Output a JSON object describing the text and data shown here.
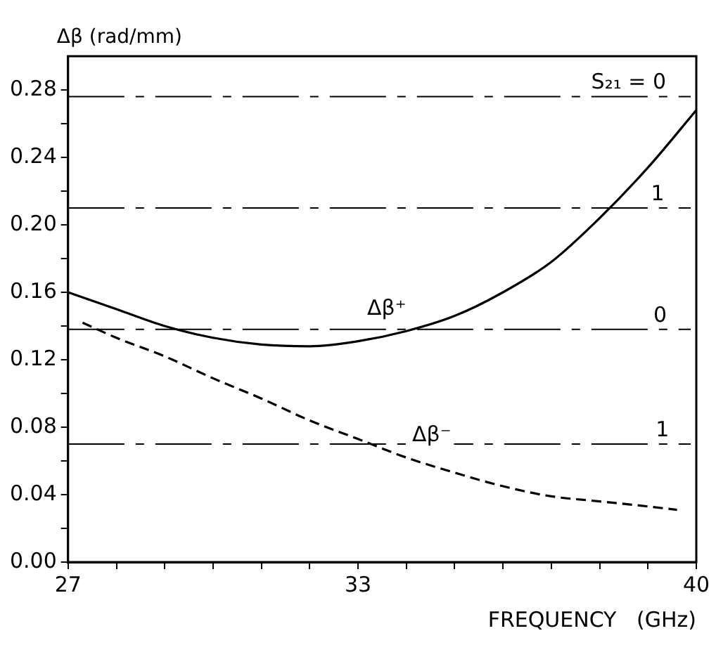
{
  "chart_data": {
    "type": "line",
    "ylabel": "Δβ (rad/mm)",
    "xlabel": "FREQUENCY   (GHz)",
    "xlim": [
      27,
      40
    ],
    "xticks": [
      27,
      {
        "value": 28,
        "label": null
      },
      {
        "value": 29,
        "label": null
      },
      {
        "value": 30,
        "label": null
      },
      {
        "value": 31,
        "label": null
      },
      {
        "value": 32,
        "label": null
      },
      33,
      {
        "value": 34,
        "label": null
      },
      {
        "value": 35,
        "label": null
      },
      {
        "value": 36,
        "label": null
      },
      {
        "value": 37,
        "label": null
      },
      {
        "value": 38,
        "label": null
      },
      {
        "value": 39,
        "label": null
      },
      40
    ],
    "ylim": [
      0,
      0.3
    ],
    "yticks": [
      {
        "value": 0,
        "label": "0.00"
      },
      {
        "value": 0.02,
        "label": null
      },
      {
        "value": 0.04,
        "label": "0.04"
      },
      {
        "value": 0.06,
        "label": null
      },
      {
        "value": 0.08,
        "label": "0.08"
      },
      {
        "value": 0.1,
        "label": null
      },
      {
        "value": 0.12,
        "label": "0.12"
      },
      {
        "value": 0.14,
        "label": null
      },
      {
        "value": 0.16,
        "label": "0.16"
      },
      {
        "value": 0.18,
        "label": null
      },
      {
        "value": 0.2,
        "label": "0.20"
      },
      {
        "value": 0.22,
        "label": null
      },
      {
        "value": 0.24,
        "label": "0.24"
      },
      {
        "value": 0.26,
        "label": null
      },
      {
        "value": 0.28,
        "label": "0.28"
      }
    ],
    "grid": false,
    "marker": "none",
    "series": [
      {
        "name": "Δβ⁺",
        "color": "#000000",
        "line_style": "solid",
        "x": [
          27,
          28,
          29,
          30,
          31,
          32,
          33,
          34,
          35,
          36,
          37,
          38,
          39,
          40
        ],
        "values": [
          0.16,
          0.15,
          0.14,
          0.133,
          0.129,
          0.128,
          0.131,
          0.137,
          0.146,
          0.16,
          0.178,
          0.204,
          0.234,
          0.268
        ]
      },
      {
        "name": "Δβ⁻",
        "color": "#000000",
        "line_style": "dashed",
        "x": [
          27.3,
          28,
          29,
          30,
          31,
          32,
          33,
          34,
          35,
          36,
          37,
          38,
          39,
          39.6
        ],
        "values": [
          0.142,
          0.133,
          0.122,
          0.109,
          0.097,
          0.084,
          0.073,
          0.062,
          0.053,
          0.045,
          0.039,
          0.036,
          0.033,
          0.031
        ]
      }
    ],
    "ref_lines": [
      {
        "axis": "y",
        "value": 0.276,
        "line_style": "dashed",
        "color": "#000000"
      },
      {
        "axis": "y",
        "value": 0.21,
        "line_style": "dashed",
        "color": "#000000"
      },
      {
        "axis": "y",
        "value": 0.138,
        "line_style": "dashed",
        "color": "#000000"
      },
      {
        "axis": "y",
        "value": 0.07,
        "line_style": "dashed",
        "color": "#000000"
      }
    ],
    "annotations": [
      {
        "text": "S₂₁ = 0",
        "x": 38.6,
        "y": 0.276
      },
      {
        "text": "1",
        "x": 39.2,
        "y": 0.21
      },
      {
        "text": "0",
        "x": 39.25,
        "y": 0.138
      },
      {
        "text": "1",
        "x": 39.3,
        "y": 0.07
      }
    ]
  }
}
